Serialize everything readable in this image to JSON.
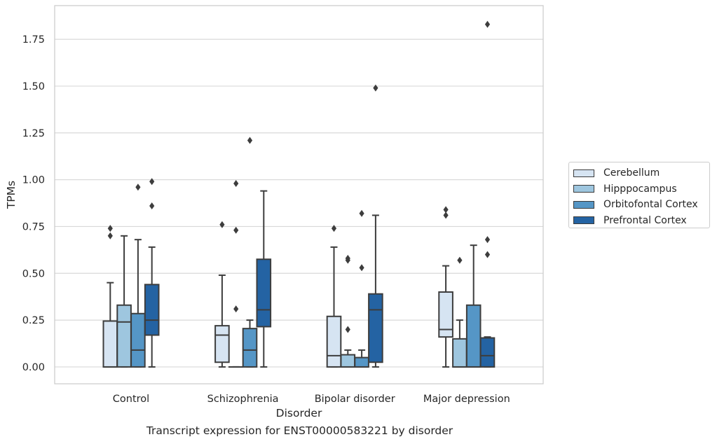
{
  "chart_data": {
    "type": "box",
    "caption": "Transcript expression for ENST00000583221 by disorder",
    "xlabel": "Disorder",
    "ylabel": "TPMs",
    "ylim": [
      -0.09,
      1.93
    ],
    "yticks": [
      "0.00",
      "0.25",
      "0.50",
      "0.75",
      "1.00",
      "1.25",
      "1.50",
      "1.75"
    ],
    "grid": true,
    "legend_position": "outside-right",
    "categories": [
      "Control",
      "Schizophrenia",
      "Bipolar disorder",
      "Major depression"
    ],
    "series": [
      {
        "name": "Cerebellum",
        "color": "#d6e4f2",
        "boxes": [
          {
            "whislo": 0.0,
            "q1": 0.0,
            "med": 0.0,
            "q3": 0.245,
            "whishi": 0.45,
            "fliers": [
              0.7,
              0.74
            ]
          },
          {
            "whislo": 0.0,
            "q1": 0.025,
            "med": 0.17,
            "q3": 0.22,
            "whishi": 0.49,
            "fliers": [
              0.76
            ]
          },
          {
            "whislo": 0.0,
            "q1": 0.0,
            "med": 0.06,
            "q3": 0.27,
            "whishi": 0.64,
            "fliers": [
              0.74
            ]
          },
          {
            "whislo": 0.0,
            "q1": 0.16,
            "med": 0.2,
            "q3": 0.4,
            "whishi": 0.54,
            "fliers": [
              0.81,
              0.84
            ]
          }
        ]
      },
      {
        "name": "Hipppocampus",
        "color": "#9ec6df",
        "boxes": [
          {
            "whislo": 0.0,
            "q1": 0.0,
            "med": 0.24,
            "q3": 0.33,
            "whishi": 0.7,
            "fliers": []
          },
          {
            "whislo": 0.0,
            "q1": 0.0,
            "med": 0.0,
            "q3": 0.0,
            "whishi": 0.0,
            "fliers": [
              0.31,
              0.73,
              0.98
            ]
          },
          {
            "whislo": 0.0,
            "q1": 0.0,
            "med": 0.0,
            "q3": 0.065,
            "whishi": 0.09,
            "fliers": [
              0.2,
              0.57,
              0.58
            ]
          },
          {
            "whislo": 0.0,
            "q1": 0.0,
            "med": 0.0,
            "q3": 0.15,
            "whishi": 0.25,
            "fliers": [
              0.57
            ]
          }
        ]
      },
      {
        "name": "Orbitofontal Cortex",
        "color": "#5596c6",
        "boxes": [
          {
            "whislo": 0.0,
            "q1": 0.0,
            "med": 0.09,
            "q3": 0.285,
            "whishi": 0.68,
            "fliers": [
              0.96
            ]
          },
          {
            "whislo": 0.0,
            "q1": 0.0,
            "med": 0.09,
            "q3": 0.205,
            "whishi": 0.25,
            "fliers": [
              1.21
            ]
          },
          {
            "whislo": 0.0,
            "q1": 0.0,
            "med": 0.0,
            "q3": 0.05,
            "whishi": 0.09,
            "fliers": [
              0.53,
              0.82
            ]
          },
          {
            "whislo": 0.0,
            "q1": 0.0,
            "med": 0.0,
            "q3": 0.33,
            "whishi": 0.65,
            "fliers": []
          }
        ]
      },
      {
        "name": "Prefrontal Cortex",
        "color": "#2463a3",
        "boxes": [
          {
            "whislo": 0.0,
            "q1": 0.17,
            "med": 0.25,
            "q3": 0.44,
            "whishi": 0.64,
            "fliers": [
              0.86,
              0.99
            ]
          },
          {
            "whislo": 0.0,
            "q1": 0.215,
            "med": 0.305,
            "q3": 0.575,
            "whishi": 0.94,
            "fliers": []
          },
          {
            "whislo": 0.0,
            "q1": 0.025,
            "med": 0.305,
            "q3": 0.39,
            "whishi": 0.81,
            "fliers": [
              1.49
            ]
          },
          {
            "whislo": 0.0,
            "q1": 0.0,
            "med": 0.06,
            "q3": 0.155,
            "whishi": 0.16,
            "fliers": [
              0.6,
              0.68,
              1.83
            ]
          }
        ]
      }
    ]
  }
}
